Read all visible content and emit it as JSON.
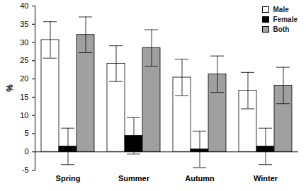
{
  "chart_data": {
    "type": "bar",
    "categories": [
      "Spring",
      "Summer",
      "Autumn",
      "Winter"
    ],
    "series": [
      {
        "name": "Male",
        "color": "#ffffff",
        "values": [
          30.7,
          24.2,
          20.4,
          16.8
        ],
        "errors": [
          5.0,
          4.9,
          5.0,
          5.0
        ]
      },
      {
        "name": "Female",
        "color": "#000000",
        "values": [
          1.5,
          4.4,
          0.7,
          1.5
        ],
        "errors": [
          5.0,
          5.0,
          5.0,
          5.0
        ]
      },
      {
        "name": "Both",
        "color": "#a0a0a0",
        "values": [
          32.1,
          28.5,
          21.3,
          18.2
        ],
        "errors": [
          4.9,
          5.0,
          5.0,
          5.0
        ]
      }
    ],
    "ylabel": "%",
    "ylim": [
      -5,
      40
    ],
    "yticks": [
      -5,
      0,
      5,
      10,
      15,
      20,
      25,
      30,
      35,
      40
    ],
    "legend": "top-right"
  }
}
